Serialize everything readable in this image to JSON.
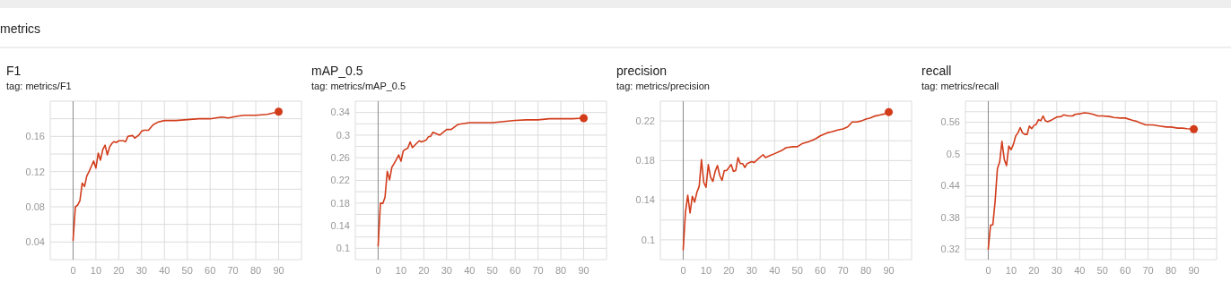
{
  "chart_data": [
    {
      "type": "line",
      "title": "F1",
      "subtitle": "tag: metrics/F1",
      "annotations": [
        "metrics"
      ],
      "xlim": [
        -10,
        100
      ],
      "xticks": [
        0,
        10,
        20,
        30,
        40,
        50,
        60,
        70,
        80,
        90
      ],
      "ylim": [
        0.02,
        0.2
      ],
      "yticks": [
        {
          "value": 0.02,
          "label": null
        },
        0.04,
        {
          "value": 0.06,
          "label": null
        },
        0.08,
        {
          "value": 0.1,
          "label": null
        },
        0.12,
        {
          "value": 0.14,
          "label": null
        },
        0.16,
        {
          "value": 0.18,
          "label": null
        },
        {
          "value": 0.2,
          "label": null
        }
      ],
      "grid": true,
      "ref_lines": [
        {
          "axis": "x",
          "value": 0,
          "color": "#8c8c8c"
        }
      ],
      "series": [
        {
          "color": "#d23c1b",
          "x": [
            0,
            1,
            2,
            3,
            4,
            5,
            6,
            7,
            8,
            9,
            10,
            11,
            12,
            13,
            14,
            15,
            16,
            17,
            18,
            19,
            20,
            22,
            23,
            24,
            26,
            27,
            29,
            30,
            31,
            33,
            35,
            37,
            40,
            45,
            50,
            55,
            60,
            65,
            68,
            72,
            75,
            80,
            85,
            90
          ],
          "values": [
            0.042,
            0.08,
            0.082,
            0.087,
            0.107,
            0.103,
            0.115,
            0.12,
            0.126,
            0.132,
            0.124,
            0.141,
            0.133,
            0.145,
            0.15,
            0.139,
            0.148,
            0.152,
            0.154,
            0.153,
            0.155,
            0.155,
            0.154,
            0.16,
            0.161,
            0.158,
            0.162,
            0.166,
            0.167,
            0.167,
            0.173,
            0.176,
            0.178,
            0.178,
            0.179,
            0.18,
            0.18,
            0.182,
            0.181,
            0.183,
            0.184,
            0.184,
            0.185,
            0.188
          ]
        },
        {
          "type": "scatter",
          "marker": "circle",
          "color": "#d23c1b",
          "x": [
            90
          ],
          "values": [
            0.188
          ]
        }
      ]
    },
    {
      "type": "line",
      "title": "mAP_0.5",
      "subtitle": "tag: metrics/mAP_0.5",
      "xlim": [
        -10,
        100
      ],
      "xticks": [
        0,
        10,
        20,
        30,
        40,
        50,
        60,
        70,
        80,
        90
      ],
      "ylim": [
        0.08,
        0.36
      ],
      "yticks": [
        {
          "value": 0.08,
          "label": null
        },
        0.1,
        {
          "value": 0.12,
          "label": null
        },
        0.14,
        {
          "value": 0.16,
          "label": null
        },
        0.18,
        {
          "value": 0.2,
          "label": null
        },
        0.22,
        {
          "value": 0.24,
          "label": null
        },
        0.26,
        {
          "value": 0.28,
          "label": null
        },
        0.3,
        {
          "value": 0.32,
          "label": null
        },
        0.34,
        {
          "value": 0.36,
          "label": null
        }
      ],
      "grid": true,
      "ref_lines": [
        {
          "axis": "x",
          "value": 0,
          "color": "#8c8c8c"
        }
      ],
      "series": [
        {
          "color": "#d23c1b",
          "x": [
            0,
            1,
            2,
            3,
            4,
            5,
            6,
            7,
            8,
            9,
            10,
            11,
            12,
            13,
            14,
            15,
            16,
            18,
            19,
            21,
            22,
            23,
            24,
            27,
            30,
            32,
            35,
            40,
            45,
            50,
            55,
            60,
            65,
            70,
            75,
            80,
            85,
            90
          ],
          "values": [
            0.104,
            0.18,
            0.179,
            0.19,
            0.236,
            0.221,
            0.243,
            0.25,
            0.257,
            0.265,
            0.254,
            0.272,
            0.275,
            0.277,
            0.288,
            0.278,
            0.282,
            0.29,
            0.288,
            0.291,
            0.297,
            0.298,
            0.305,
            0.3,
            0.31,
            0.31,
            0.319,
            0.322,
            0.322,
            0.322,
            0.324,
            0.326,
            0.327,
            0.327,
            0.329,
            0.329,
            0.329,
            0.33
          ]
        },
        {
          "type": "scatter",
          "marker": "circle",
          "color": "#d23c1b",
          "x": [
            90
          ],
          "values": [
            0.33
          ]
        }
      ]
    },
    {
      "type": "line",
      "title": "precision",
      "subtitle": "tag: metrics/precision",
      "xlim": [
        -10,
        100
      ],
      "xticks": [
        0,
        10,
        20,
        30,
        40,
        50,
        60,
        70,
        80,
        90
      ],
      "ylim": [
        0.08,
        0.24
      ],
      "yticks": [
        {
          "value": 0.08,
          "label": null
        },
        0.1,
        {
          "value": 0.12,
          "label": null
        },
        0.14,
        {
          "value": 0.16,
          "label": null
        },
        0.18,
        {
          "value": 0.2,
          "label": null
        },
        0.22,
        {
          "value": 0.24,
          "label": null
        }
      ],
      "grid": true,
      "ref_lines": [
        {
          "axis": "x",
          "value": 0,
          "color": "#8c8c8c"
        }
      ],
      "series": [
        {
          "color": "#d23c1b",
          "x": [
            0,
            1,
            2,
            3,
            4,
            5,
            6,
            7,
            8,
            9,
            10,
            11,
            12,
            13,
            14,
            15,
            16,
            17,
            18,
            19,
            21,
            22,
            23,
            24,
            25,
            26,
            27,
            28,
            30,
            31,
            33,
            35,
            36,
            38,
            40,
            43,
            45,
            48,
            50,
            52,
            55,
            58,
            60,
            63,
            65,
            68,
            70,
            72,
            74,
            76,
            78,
            80,
            82,
            84,
            86,
            88,
            90
          ],
          "values": [
            0.09,
            0.128,
            0.145,
            0.127,
            0.144,
            0.138,
            0.148,
            0.154,
            0.181,
            0.158,
            0.153,
            0.176,
            0.163,
            0.159,
            0.169,
            0.175,
            0.165,
            0.16,
            0.17,
            0.17,
            0.176,
            0.169,
            0.17,
            0.183,
            0.177,
            0.177,
            0.173,
            0.177,
            0.179,
            0.178,
            0.182,
            0.186,
            0.183,
            0.185,
            0.187,
            0.19,
            0.193,
            0.194,
            0.194,
            0.197,
            0.199,
            0.202,
            0.205,
            0.208,
            0.209,
            0.211,
            0.212,
            0.214,
            0.219,
            0.219,
            0.22,
            0.222,
            0.223,
            0.225,
            0.226,
            0.227,
            0.229
          ]
        },
        {
          "type": "scatter",
          "marker": "circle",
          "color": "#d23c1b",
          "x": [
            90
          ],
          "values": [
            0.229
          ]
        }
      ]
    },
    {
      "type": "line",
      "title": "recall",
      "subtitle": "tag: metrics/recall",
      "xlim": [
        -10,
        100
      ],
      "xticks": [
        0,
        10,
        20,
        30,
        40,
        50,
        60,
        70,
        80,
        90
      ],
      "ylim": [
        0.3,
        0.6
      ],
      "yticks": [
        {
          "value": 0.3,
          "label": null
        },
        0.32,
        {
          "value": 0.34,
          "label": null
        },
        {
          "value": 0.36,
          "label": null
        },
        0.38,
        {
          "value": 0.4,
          "label": null
        },
        {
          "value": 0.42,
          "label": null
        },
        0.44,
        {
          "value": 0.46,
          "label": null
        },
        {
          "value": 0.48,
          "label": null
        },
        0.5,
        {
          "value": 0.52,
          "label": null
        },
        {
          "value": 0.54,
          "label": null
        },
        0.56,
        {
          "value": 0.58,
          "label": null
        },
        {
          "value": 0.6,
          "label": null
        }
      ],
      "grid": true,
      "ref_lines": [
        {
          "axis": "x",
          "value": 0,
          "color": "#8c8c8c"
        }
      ],
      "series": [
        {
          "color": "#d23c1b",
          "x": [
            0,
            1,
            2,
            3,
            4,
            5,
            6,
            7,
            8,
            9,
            10,
            11,
            12,
            13,
            14,
            15,
            16,
            17,
            18,
            19,
            20,
            21,
            22,
            23,
            24,
            25,
            26,
            28,
            30,
            32,
            33,
            35,
            37,
            38,
            40,
            42,
            44,
            46,
            48,
            50,
            53,
            55,
            58,
            60,
            63,
            65,
            67,
            69,
            72,
            75,
            78,
            80,
            83,
            85,
            87,
            90
          ],
          "values": [
            0.32,
            0.365,
            0.366,
            0.41,
            0.472,
            0.485,
            0.524,
            0.49,
            0.478,
            0.515,
            0.508,
            0.518,
            0.534,
            0.54,
            0.55,
            0.54,
            0.537,
            0.537,
            0.553,
            0.548,
            0.554,
            0.556,
            0.565,
            0.563,
            0.572,
            0.563,
            0.561,
            0.565,
            0.57,
            0.571,
            0.574,
            0.572,
            0.572,
            0.575,
            0.576,
            0.578,
            0.577,
            0.575,
            0.572,
            0.572,
            0.571,
            0.569,
            0.568,
            0.568,
            0.564,
            0.562,
            0.558,
            0.555,
            0.555,
            0.553,
            0.551,
            0.551,
            0.549,
            0.549,
            0.548,
            0.547
          ]
        },
        {
          "type": "scatter",
          "marker": "circle",
          "color": "#d23c1b",
          "x": [
            90
          ],
          "values": [
            0.547
          ]
        }
      ]
    }
  ]
}
